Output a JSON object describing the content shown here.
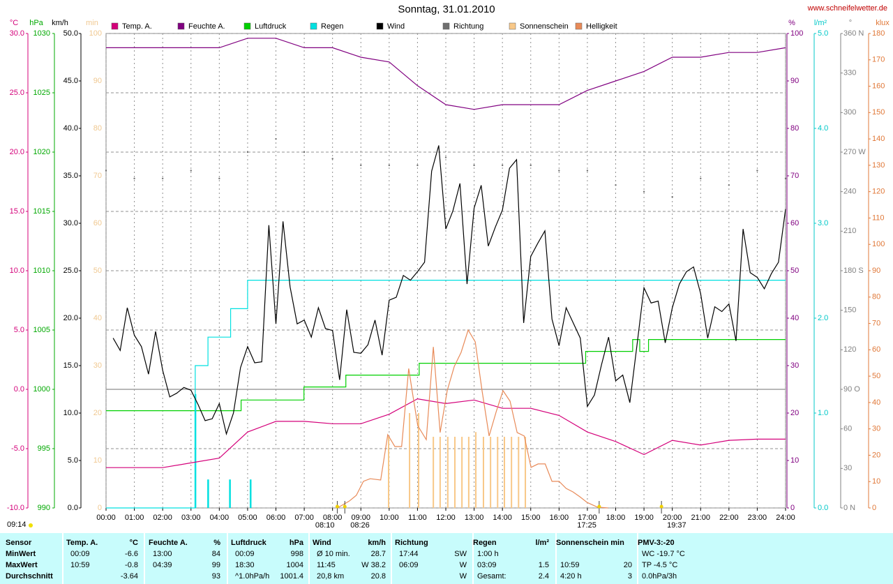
{
  "chart_data": {
    "type": "line",
    "title": "Sonntag, 31.01.2010",
    "site": "www.schneifelwetter.de",
    "day_length": "09:14",
    "grid": true,
    "xlim": [
      0,
      24
    ],
    "xticks": [
      {
        "value": 0,
        "label": "00:00"
      },
      {
        "value": 1,
        "label": "01:00"
      },
      {
        "value": 2,
        "label": "02:00"
      },
      {
        "value": 3,
        "label": "03:00"
      },
      {
        "value": 4,
        "label": "04:00"
      },
      {
        "value": 5,
        "label": "05:00"
      },
      {
        "value": 6,
        "label": "06:00"
      },
      {
        "value": 7,
        "label": "07:00"
      },
      {
        "value": 8,
        "label": "08:00"
      },
      {
        "value": 9,
        "label": "09:00"
      },
      {
        "value": 10,
        "label": "10:00"
      },
      {
        "value": 11,
        "label": "11:00"
      },
      {
        "value": 12,
        "label": "12:00"
      },
      {
        "value": 13,
        "label": "13:00"
      },
      {
        "value": 14,
        "label": "14:00"
      },
      {
        "value": 15,
        "label": "15:00"
      },
      {
        "value": 16,
        "label": "16:00"
      },
      {
        "value": 17,
        "label": "17:00"
      },
      {
        "value": 18,
        "label": "18:00"
      },
      {
        "value": 19,
        "label": "19:00"
      },
      {
        "value": 20,
        "label": "20:00"
      },
      {
        "value": 21,
        "label": "21:00"
      },
      {
        "value": 22,
        "label": "22:00"
      },
      {
        "value": 23,
        "label": "23:00"
      },
      {
        "value": 24,
        "label": "24:00"
      }
    ],
    "sun_markers": [
      {
        "value": 8.167,
        "label": "08:10"
      },
      {
        "value": 8.433,
        "label": "08:26"
      },
      {
        "value": 17.417,
        "label": "17:25"
      },
      {
        "value": 19.617,
        "label": "19:37"
      }
    ],
    "axes": [
      {
        "title": "°C",
        "color": "#d4007a",
        "side": "left",
        "lim": [
          -10,
          30
        ],
        "ticks": [
          {
            "value": -10,
            "label": "-10.0"
          },
          {
            "value": -5,
            "label": "-5.0"
          },
          {
            "value": 0,
            "label": "0.0"
          },
          {
            "value": 5,
            "label": "5.0"
          },
          {
            "value": 10,
            "label": "10.0"
          },
          {
            "value": 15,
            "label": "15.0"
          },
          {
            "value": 20,
            "label": "20.0"
          },
          {
            "value": 25,
            "label": "25.0"
          },
          {
            "value": 30,
            "label": "30.0"
          }
        ]
      },
      {
        "title": "hPa",
        "color": "#00a800",
        "side": "left",
        "lim": [
          990,
          1030
        ],
        "ticks": [
          990,
          995,
          1000,
          1005,
          1010,
          1015,
          1020,
          1025,
          1030
        ]
      },
      {
        "title": "km/h",
        "color": "#000000",
        "side": "left",
        "lim": [
          0,
          50
        ],
        "ticks": [
          {
            "value": 0,
            "label": "0.0"
          },
          {
            "value": 5,
            "label": "5.0"
          },
          {
            "value": 10,
            "label": "10.0"
          },
          {
            "value": 15,
            "label": "15.0"
          },
          {
            "value": 20,
            "label": "20.0"
          },
          {
            "value": 25,
            "label": "25.0"
          },
          {
            "value": 30,
            "label": "30.0"
          },
          {
            "value": 35,
            "label": "35.0"
          },
          {
            "value": 40,
            "label": "40.0"
          },
          {
            "value": 45,
            "label": "45.0"
          },
          {
            "value": 50,
            "label": "50.0"
          }
        ]
      },
      {
        "title": "min",
        "color": "#f0c890",
        "side": "left",
        "lim": [
          0,
          100
        ],
        "ticks": [
          0,
          10,
          20,
          30,
          40,
          50,
          60,
          70,
          80,
          90,
          100
        ]
      },
      {
        "title": "%",
        "color": "#800080",
        "side": "right",
        "lim": [
          0,
          100
        ],
        "ticks": [
          0,
          10,
          20,
          30,
          40,
          50,
          60,
          70,
          80,
          90,
          100
        ]
      },
      {
        "title": "l/m²",
        "color": "#00c8c8",
        "side": "right",
        "lim": [
          0,
          5
        ],
        "ticks": [
          {
            "value": 0,
            "label": "0.0"
          },
          {
            "value": 1,
            "label": "1.0"
          },
          {
            "value": 2,
            "label": "2.0"
          },
          {
            "value": 3,
            "label": "3.0"
          },
          {
            "value": 4,
            "label": "4.0"
          },
          {
            "value": 5,
            "label": "5.0"
          }
        ]
      },
      {
        "title": "°",
        "color": "#808080",
        "side": "right",
        "lim": [
          0,
          360
        ],
        "ticks": [
          {
            "value": 0,
            "label": "0 N"
          },
          30,
          60,
          {
            "value": 90,
            "label": "90 O"
          },
          120,
          150,
          {
            "value": 180,
            "label": "180 S"
          },
          210,
          240,
          {
            "value": 270,
            "label": "270 W"
          },
          300,
          330,
          {
            "value": 360,
            "label": "360 N"
          }
        ]
      },
      {
        "title": "klux",
        "color": "#e07838",
        "side": "right",
        "lim": [
          0,
          180
        ],
        "ticks": [
          0,
          10,
          20,
          30,
          40,
          50,
          60,
          70,
          80,
          90,
          100,
          110,
          120,
          130,
          140,
          150,
          160,
          170,
          180
        ]
      }
    ],
    "series": [
      {
        "name": "Temp. A.",
        "color": "#d4007a",
        "axis": 0,
        "kind": "line",
        "x": [
          0,
          1,
          2,
          3,
          4,
          5,
          6,
          7,
          8,
          9,
          10,
          11,
          12,
          13,
          14,
          15,
          16,
          17,
          18,
          19,
          20,
          21,
          22,
          23,
          24
        ],
        "values": [
          -6.6,
          -6.6,
          -6.6,
          -6.2,
          -5.8,
          -3.6,
          -2.7,
          -2.7,
          -2.9,
          -2.9,
          -2.1,
          -0.8,
          -1.2,
          -0.9,
          -1.6,
          -1.6,
          -2.2,
          -3.6,
          -4.4,
          -5.5,
          -4.3,
          -4.7,
          -4.3,
          -4.2,
          -4.2
        ]
      },
      {
        "name": "Feuchte A.",
        "color": "#800080",
        "axis": 4,
        "kind": "line",
        "x": [
          0,
          1,
          2,
          3,
          4,
          5,
          6,
          7,
          8,
          9,
          10,
          11,
          12,
          13,
          14,
          15,
          16,
          17,
          18,
          19,
          20,
          21,
          22,
          23,
          24
        ],
        "values": [
          97,
          97,
          97,
          97,
          97,
          99,
          99,
          97,
          97,
          95,
          94,
          89,
          85,
          84,
          85,
          85,
          85,
          88,
          90,
          92,
          95,
          95,
          96,
          96,
          97
        ]
      },
      {
        "name": "Luftdruck",
        "color": "#00d000",
        "axis": 1,
        "kind": "step",
        "x": [
          0,
          4.77,
          6.99,
          8.47,
          11.06,
          16.94,
          18.6,
          18.85,
          19.16,
          24
        ],
        "values": [
          998.2,
          999.1,
          1000.2,
          1001.2,
          1002.2,
          1003.2,
          1004.2,
          1003.2,
          1004.2,
          1004.2
        ]
      },
      {
        "name": "Regen",
        "color": "#00e0e0",
        "axis": 5,
        "kind": "step",
        "x": [
          0,
          2.85,
          3.15,
          3.6,
          4.4,
          5.0,
          24
        ],
        "values": [
          0,
          0,
          1.5,
          1.8,
          2.1,
          2.4,
          2.4
        ],
        "bars": {
          "x": [
            3.15,
            3.6,
            4.37,
            5.1
          ],
          "values": [
            1.2,
            0.3,
            0.3,
            0.3
          ]
        }
      },
      {
        "name": "Wind",
        "color": "#000000",
        "axis": 2,
        "kind": "line",
        "x": [
          0.25,
          0.5,
          0.75,
          1,
          1.25,
          1.5,
          1.75,
          2,
          2.25,
          2.5,
          2.75,
          3,
          3.25,
          3.5,
          3.75,
          4,
          4.25,
          4.5,
          4.75,
          5,
          5.25,
          5.5,
          5.75,
          6,
          6.25,
          6.5,
          6.75,
          7,
          7.25,
          7.5,
          7.75,
          8,
          8.25,
          8.5,
          8.75,
          9,
          9.25,
          9.5,
          9.75,
          10,
          10.25,
          10.5,
          10.75,
          11,
          11.25,
          11.5,
          11.75,
          12,
          12.25,
          12.5,
          12.75,
          13,
          13.25,
          13.5,
          13.75,
          14,
          14.25,
          14.5,
          14.75,
          15,
          15.25,
          15.5,
          15.75,
          16,
          16.25,
          16.5,
          16.75,
          17,
          17.25,
          17.5,
          17.75,
          18,
          18.25,
          18.5,
          18.75,
          19,
          19.25,
          19.5,
          19.75,
          20,
          20.25,
          20.5,
          20.75,
          21,
          21.25,
          21.5,
          21.75,
          22,
          22.25,
          22.5,
          22.75,
          23,
          23.25,
          23.5,
          23.75,
          24
        ],
        "values": [
          17.9,
          16.6,
          21.1,
          18.2,
          17.0,
          14.1,
          18.6,
          14.5,
          11.7,
          12.1,
          12.7,
          12.4,
          10.9,
          9.2,
          9.4,
          11.0,
          7.8,
          10.0,
          14.8,
          17.0,
          15.3,
          15.4,
          29.8,
          19.4,
          30.2,
          23.3,
          19.4,
          19.8,
          18.0,
          21.1,
          18.9,
          18.7,
          13.5,
          20.9,
          16.4,
          16.3,
          17.2,
          19.8,
          16.1,
          21.9,
          22.2,
          24.5,
          24.0,
          24.9,
          25.9,
          35.5,
          38.2,
          29.4,
          31.3,
          34.2,
          23.6,
          31.6,
          34.0,
          27.6,
          29.6,
          31.4,
          35.8,
          36.7,
          19.5,
          26.5,
          27.9,
          29.2,
          19.9,
          17.1,
          21.1,
          19.5,
          17.9,
          10.7,
          11.9,
          15.1,
          18.0,
          13.4,
          14.0,
          11.1,
          17.1,
          23.2,
          21.6,
          21.8,
          17.4,
          21.1,
          23.6,
          24.9,
          25.4,
          22.6,
          17.9,
          21.2,
          20.7,
          21.5,
          17.6,
          29.4,
          24.8,
          24.3,
          23.1,
          24.7,
          25.9,
          31.5
        ]
      },
      {
        "name": "Richtung",
        "color": "#707070",
        "axis": 6,
        "kind": "dots",
        "x": [
          0,
          1,
          2,
          3,
          4,
          5,
          6,
          7,
          8,
          9,
          10,
          11,
          12,
          13,
          14,
          15,
          16,
          17,
          18,
          19,
          20,
          21,
          22,
          23,
          24
        ],
        "values": [
          256,
          250,
          250,
          256,
          250,
          270,
          280,
          270,
          265,
          260,
          260,
          260,
          266,
          260,
          260,
          260,
          256,
          256,
          245,
          240,
          236,
          250,
          245,
          256,
          250
        ]
      },
      {
        "name": "Sonnenschein",
        "color": "#f8c888",
        "axis": 3,
        "kind": "bars",
        "x": [
          9.98,
          10.72,
          11.04,
          11.56,
          11.8,
          12.07,
          12.32,
          12.57,
          12.81,
          13.06,
          13.33,
          13.58,
          13.83,
          14.07,
          14.32,
          14.57,
          14.81
        ],
        "values": [
          15,
          20,
          20,
          15,
          15,
          15,
          15,
          15,
          15,
          16,
          15,
          15,
          15,
          15,
          15,
          15,
          15
        ]
      },
      {
        "name": "Helligkeit",
        "color": "#e88a58",
        "axis": 7,
        "kind": "line",
        "x": [
          8.17,
          8.59,
          8.84,
          9.09,
          9.33,
          9.7,
          9.95,
          10.2,
          10.44,
          10.69,
          10.81,
          11.01,
          11.31,
          11.56,
          11.8,
          12.05,
          12.3,
          12.54,
          12.79,
          13.04,
          13.28,
          13.53,
          13.78,
          14.02,
          14.27,
          14.52,
          14.77,
          15.01,
          15.26,
          15.51,
          15.75,
          16.0,
          16.25,
          16.49,
          16.74,
          16.99,
          17.36,
          17.73
        ],
        "values": [
          0,
          2.6,
          4.8,
          10.1,
          11.1,
          10.6,
          27.8,
          23.3,
          23.3,
          52.9,
          44.5,
          31.2,
          25.9,
          61.1,
          28.6,
          44.5,
          53.7,
          59.0,
          67.5,
          63.0,
          44.5,
          27.3,
          36.5,
          44.5,
          40.5,
          28.6,
          27.3,
          15.4,
          16.7,
          16.7,
          10.1,
          10.1,
          7.4,
          6.1,
          4.2,
          2.1,
          0.3,
          0
        ]
      }
    ]
  },
  "table": {
    "rows": [
      [
        "Sensor",
        "Temp. A.",
        "°C",
        "Feuchte A.",
        "%",
        "Luftdruck",
        "hPa",
        "Wind",
        "km/h",
        "Richtung",
        null,
        "Regen",
        "l/m²",
        "Sonnenschein min",
        null,
        "PMV-3:-20"
      ],
      [
        "MinWert",
        "00:09",
        "-6.6",
        "13:00",
        "84",
        "00:09",
        "998",
        "Ø 10 min.",
        "28.7",
        "17:44",
        "SW",
        "1:00 h",
        null,
        null,
        null,
        "WC -19.7 °C"
      ],
      [
        "MaxWert",
        "10:59",
        "-0.8",
        "04:39",
        "99",
        "18:30",
        "1004",
        "11:45",
        "W 38.2",
        "06:09",
        "W",
        "03:09",
        "1.5",
        "10:59",
        "20",
        "TP -4.5 °C"
      ],
      [
        "Durchschnitt",
        null,
        "-3.64",
        null,
        "93",
        "^1.0hPa/h",
        "1001.4",
        "20,8 km",
        "20.8",
        null,
        "W",
        "Gesamt:",
        "2.4",
        "4:20 h",
        "3",
        "0.0hPa/3h"
      ]
    ]
  }
}
